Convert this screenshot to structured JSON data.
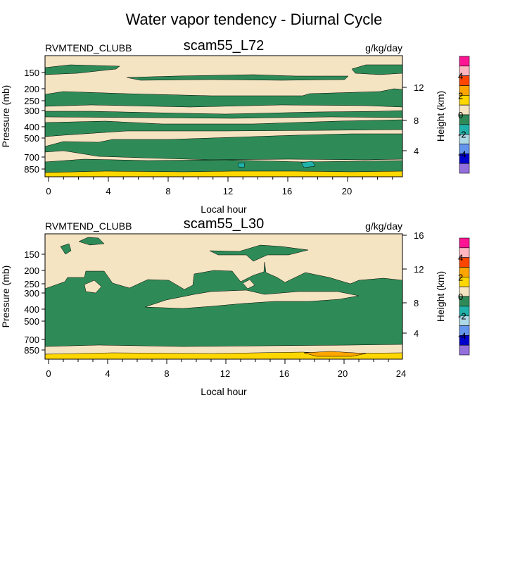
{
  "figure": {
    "title": "Water vapor tendency - Diurnal Cycle"
  },
  "chart_data": [
    {
      "type": "contour",
      "variable": "RVMTEND_CLUBB",
      "case": "scam55_L72",
      "units": "g/kg/day",
      "xlabel": "Local hour",
      "ylabel": "Pressure (mb)",
      "ylabel_right": "Height (km)",
      "xlim": [
        0,
        24
      ],
      "x_ticks": [
        "0",
        "4",
        "8",
        "12",
        "16",
        "20"
      ],
      "y_ticks": [
        "150",
        "200",
        "250",
        "300",
        "400",
        "500",
        "700",
        "850"
      ],
      "y_right_ticks": [
        "4",
        "8",
        "12"
      ],
      "colorbar": {
        "labels": [
          "4",
          "2",
          "0",
          "-2",
          "-4"
        ],
        "colors": [
          "#ff1493",
          "#ffb6c1",
          "#ff4500",
          "#ffa500",
          "#ffd700",
          "#f5e4c2",
          "#2e8b57",
          "#20b2aa",
          "#add8e6",
          "#6495ed",
          "#0000cd",
          "#9370db"
        ]
      },
      "background_color": "#f5e4c2",
      "dominant_negative_color": "#2e8b57",
      "surface_positive_color": "#ffd700"
    },
    {
      "type": "contour",
      "variable": "RVMTEND_CLUBB",
      "case": "scam55_L30",
      "units": "g/kg/day",
      "xlabel": "Local hour",
      "ylabel": "Pressure (mb)",
      "ylabel_right": "Height (km)",
      "xlim": [
        0,
        24
      ],
      "x_ticks": [
        "0",
        "4",
        "8",
        "12",
        "16",
        "20",
        "24"
      ],
      "y_ticks": [
        "150",
        "200",
        "250",
        "300",
        "400",
        "500",
        "700",
        "850"
      ],
      "y_right_ticks": [
        "4",
        "8",
        "12",
        "16"
      ],
      "colorbar": {
        "labels": [
          "4",
          "2",
          "0",
          "-2",
          "-4"
        ],
        "colors": [
          "#ff1493",
          "#ffb6c1",
          "#ff4500",
          "#ffa500",
          "#ffd700",
          "#f5e4c2",
          "#2e8b57",
          "#20b2aa",
          "#add8e6",
          "#6495ed",
          "#0000cd",
          "#9370db"
        ]
      },
      "background_color": "#f5e4c2",
      "dominant_negative_color": "#2e8b57",
      "surface_positive_color": "#ffd700"
    }
  ]
}
